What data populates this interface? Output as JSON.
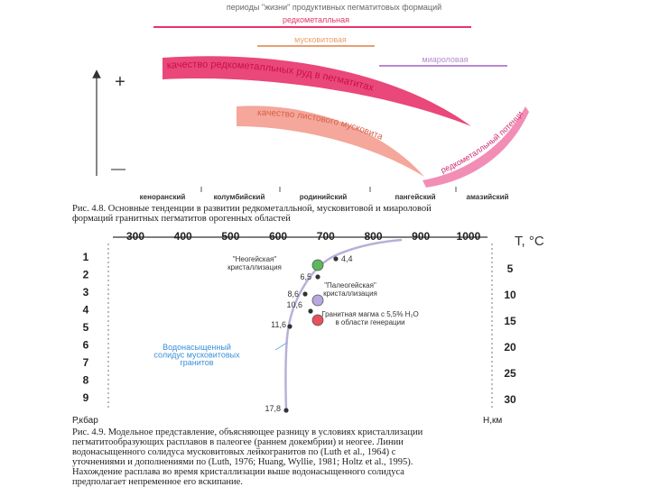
{
  "figure_1": {
    "header": "периоды \"жизни\" продуктивных пегматитовых формаций",
    "formations": [
      "редкометалльная",
      "мусковитовая",
      "миароловая"
    ],
    "axis_plus": "+",
    "axis_minus": "—",
    "band_labels": [
      "качество редкометалльных руд в пегматитах",
      "качество листового мусковита",
      "редкометалльный потенциал"
    ],
    "eras": [
      "кеноранский",
      "колумбийский",
      "родинийский",
      "пангейский",
      "амазийский"
    ],
    "caption_lines": [
      "Рис. 4.8. Основные тенденции в развитии редкометалльной, мусковитовой и миароловой",
      "формаций гранитных пегматитов орогенных областей"
    ]
  },
  "figure_2": {
    "t_axis_labels": [
      "300",
      "400",
      "500",
      "600",
      "700",
      "800",
      "900",
      "1000"
    ],
    "t_axis_title": "T, °C",
    "p_axis_labels": [
      "1",
      "2",
      "3",
      "4",
      "5",
      "6",
      "7",
      "8",
      "9"
    ],
    "p_axis_title": "Р,кбар",
    "h_axis_labels": [
      "5",
      "10",
      "15",
      "20",
      "25",
      "30"
    ],
    "h_axis_title": "Н,км",
    "point_labels": [
      "4,4",
      "6,5",
      "8,6",
      "10,6",
      "11,6",
      "17,8"
    ],
    "legend": [
      [
        "\"Неогейская\"",
        "кристаллизация"
      ],
      [
        "\"Палеогейская\"",
        "кристаллизация"
      ],
      [
        "Гранитная магма с 5,5% H₂O",
        "в области генерации"
      ]
    ],
    "solidus_lines": [
      "Водонасыщенный",
      "солидус мусковитовых",
      "гранитов"
    ],
    "caption_lines": [
      "Рис. 4.9. Модельное представление, объясняющее разницу в условиях кристаллизации",
      "пегматитообразующих расплавов в палеогее (раннем докембрии) и неогее. Линии",
      "водонасыщенного солидуса мусковитовых лейкогранитов по (Luth et al., 1964) с",
      "уточнениями и дополнениями по (Luth, 1976; Huang, Wyllie, 1981; Holtz et al., 1995).",
      "Нахождение расплава во время кристаллизации выше водонасыщенного солидуса",
      "предполагает непременное его вскипание."
    ]
  }
}
